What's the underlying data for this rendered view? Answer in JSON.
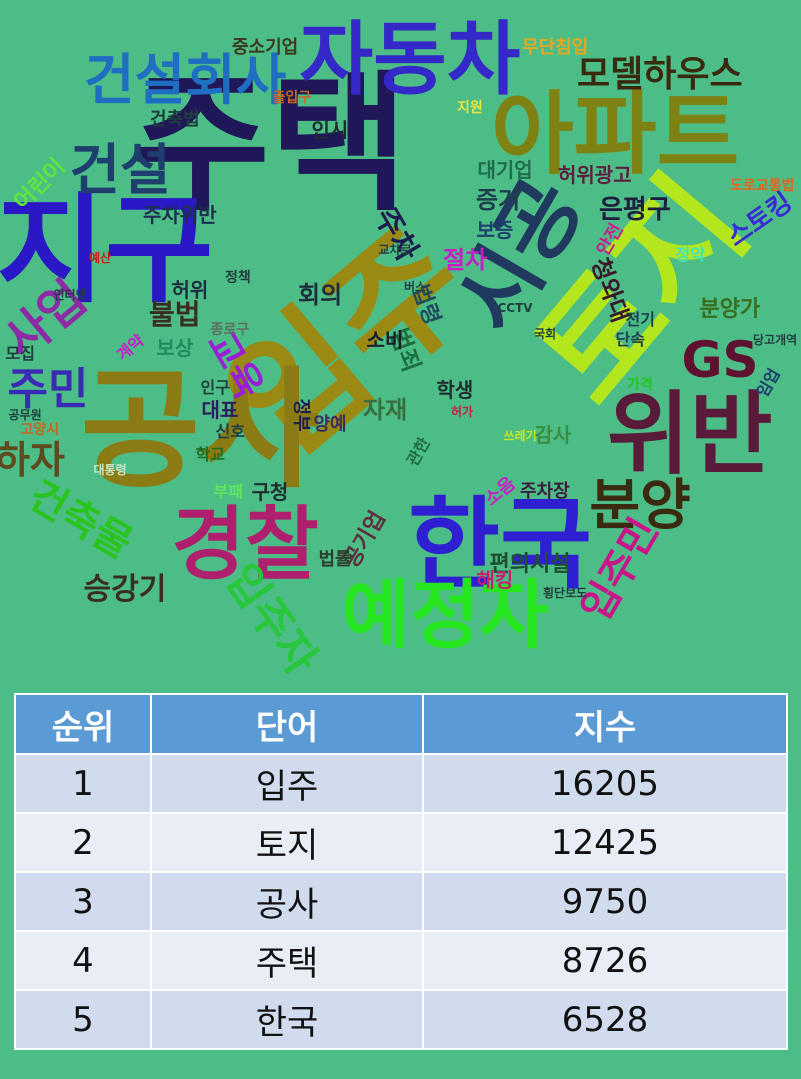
{
  "word_cloud": {
    "words": [
      {
        "text": "주택",
        "color": "#1f1757"
      },
      {
        "text": "입주",
        "color": "#9a8a14"
      },
      {
        "text": "공사",
        "color": "#8a7b14"
      },
      {
        "text": "토지",
        "color": "#b4e61e"
      },
      {
        "text": "지구",
        "color": "#2a18c6"
      },
      {
        "text": "자동차",
        "color": "#3528c8"
      },
      {
        "text": "아파트",
        "color": "#7e8212"
      },
      {
        "text": "한국",
        "color": "#2e1fd2"
      },
      {
        "text": "위반",
        "color": "#5a1a3a"
      },
      {
        "text": "경찰",
        "color": "#b01e6e"
      },
      {
        "text": "예정자",
        "color": "#25e61e"
      },
      {
        "text": "건설회사",
        "color": "#1f6ec2"
      },
      {
        "text": "시공",
        "color": "#1f3a5e"
      },
      {
        "text": "건설",
        "color": "#1e3e6e"
      },
      {
        "text": "모델하우스",
        "color": "#3a2a10"
      },
      {
        "text": "GS",
        "color": "#5e1230"
      },
      {
        "text": "분양",
        "color": "#3a2a10"
      },
      {
        "text": "사업",
        "color": "#8e2aa6"
      },
      {
        "text": "주민",
        "color": "#3a2ab6"
      },
      {
        "text": "하자",
        "color": "#5e4a1e"
      },
      {
        "text": "건축물",
        "color": "#2ac41e"
      },
      {
        "text": "입주민",
        "color": "#c8158a"
      },
      {
        "text": "입주자",
        "color": "#28c63a"
      },
      {
        "text": "교육",
        "color": "#9a1ed6"
      },
      {
        "text": "불법",
        "color": "#3a2e1e"
      },
      {
        "text": "승강기",
        "color": "#3a2e1e"
      },
      {
        "text": "주차",
        "color": "#1e1e4e"
      },
      {
        "text": "증거",
        "color": "#1e3e4e"
      },
      {
        "text": "은평구",
        "color": "#1e1e3e"
      },
      {
        "text": "스토킹",
        "color": "#3a2ad6"
      },
      {
        "text": "청와대",
        "color": "#3a1a2a"
      },
      {
        "text": "분양가",
        "color": "#3a6e1e"
      },
      {
        "text": "회의",
        "color": "#1e2e3e"
      },
      {
        "text": "범죄",
        "color": "#1e6e3e"
      },
      {
        "text": "자재",
        "color": "#3a6e3e"
      },
      {
        "text": "법령",
        "color": "#1e4e5e"
      },
      {
        "text": "절차",
        "color": "#c81ec8"
      },
      {
        "text": "보증",
        "color": "#1e3e6e"
      },
      {
        "text": "대기업",
        "color": "#1e6e4e"
      },
      {
        "text": "허위광고",
        "color": "#5e1e3e"
      },
      {
        "text": "건축법",
        "color": "#1e3e3e"
      },
      {
        "text": "인시",
        "color": "#1e2e2e"
      },
      {
        "text": "중소기업",
        "color": "#3a3a1e"
      },
      {
        "text": "주차위반",
        "color": "#1e2e4e"
      },
      {
        "text": "허위",
        "color": "#1e2e3e"
      },
      {
        "text": "보상",
        "color": "#1e8e5e"
      },
      {
        "text": "대표",
        "color": "#2e1e5e"
      },
      {
        "text": "정부",
        "color": "#1e1e4e"
      },
      {
        "text": "양예",
        "color": "#3a2e5e"
      },
      {
        "text": "구청",
        "color": "#1e2e2e"
      },
      {
        "text": "학생",
        "color": "#1e2e2e"
      },
      {
        "text": "감사",
        "color": "#3a8e3e"
      },
      {
        "text": "소비",
        "color": "#1e1e2e"
      },
      {
        "text": "공기업",
        "color": "#5e2e3e"
      },
      {
        "text": "편의시설",
        "color": "#1e4e2e"
      },
      {
        "text": "해킹",
        "color": "#c81e6e"
      },
      {
        "text": "소음",
        "color": "#c81ec8"
      },
      {
        "text": "주차장",
        "color": "#3a1e3e"
      },
      {
        "text": "법률",
        "color": "#2e3e2e"
      },
      {
        "text": "어린이",
        "color": "#5ee63e"
      },
      {
        "text": "안전",
        "color": "#c81e8e"
      },
      {
        "text": "전기",
        "color": "#1e3e4e"
      },
      {
        "text": "단속",
        "color": "#1e3e4e"
      },
      {
        "text": "정약",
        "color": "#3ae6c8"
      },
      {
        "text": "임업",
        "color": "#1e3e6e"
      },
      {
        "text": "무단침입",
        "color": "#e6a81e"
      },
      {
        "text": "도로교통법",
        "color": "#e6641e"
      },
      {
        "text": "CCTV",
        "color": "#1e3e3e"
      },
      {
        "text": "모집",
        "color": "#1e3e3e"
      },
      {
        "text": "인구",
        "color": "#1e3e3e"
      },
      {
        "text": "신호",
        "color": "#1e3e3e"
      },
      {
        "text": "학교",
        "color": "#1e6e1e"
      },
      {
        "text": "부패",
        "color": "#5ee65e"
      },
      {
        "text": "관한",
        "color": "#1e6e3e"
      },
      {
        "text": "계약",
        "color": "#c81ec8"
      },
      {
        "text": "출입구",
        "color": "#c8641e"
      },
      {
        "text": "인터넷",
        "color": "#1e3e3e"
      },
      {
        "text": "공무원",
        "color": "#1e3e3e"
      },
      {
        "text": "국회",
        "color": "#1e3e3e"
      },
      {
        "text": "버스",
        "color": "#1e3e3e"
      },
      {
        "text": "정책",
        "color": "#1e3e3e"
      },
      {
        "text": "예산",
        "color": "#c81e1e"
      },
      {
        "text": "고양시",
        "color": "#c8641e"
      },
      {
        "text": "횡단보도",
        "color": "#1e3e3e"
      },
      {
        "text": "교차로",
        "color": "#1e3e3e"
      },
      {
        "text": "대통령",
        "color": "#c8e6c8"
      },
      {
        "text": "종로구",
        "color": "#5e6e5e"
      },
      {
        "text": "당고개역",
        "color": "#1e3e3e"
      },
      {
        "text": "지원",
        "color": "#e6e63e"
      },
      {
        "text": "가격",
        "color": "#1ec81e"
      },
      {
        "text": "쓰레기",
        "color": "#c8e61e"
      },
      {
        "text": "허가",
        "color": "#c81e3e"
      }
    ]
  },
  "table": {
    "headers": [
      "순위",
      "단어",
      "지수"
    ],
    "rows": [
      [
        "1",
        "입주",
        "16205"
      ],
      [
        "2",
        "토지",
        "12425"
      ],
      [
        "3",
        "공사",
        "9750"
      ],
      [
        "4",
        "주택",
        "8726"
      ],
      [
        "5",
        "한국",
        "6528"
      ]
    ]
  }
}
